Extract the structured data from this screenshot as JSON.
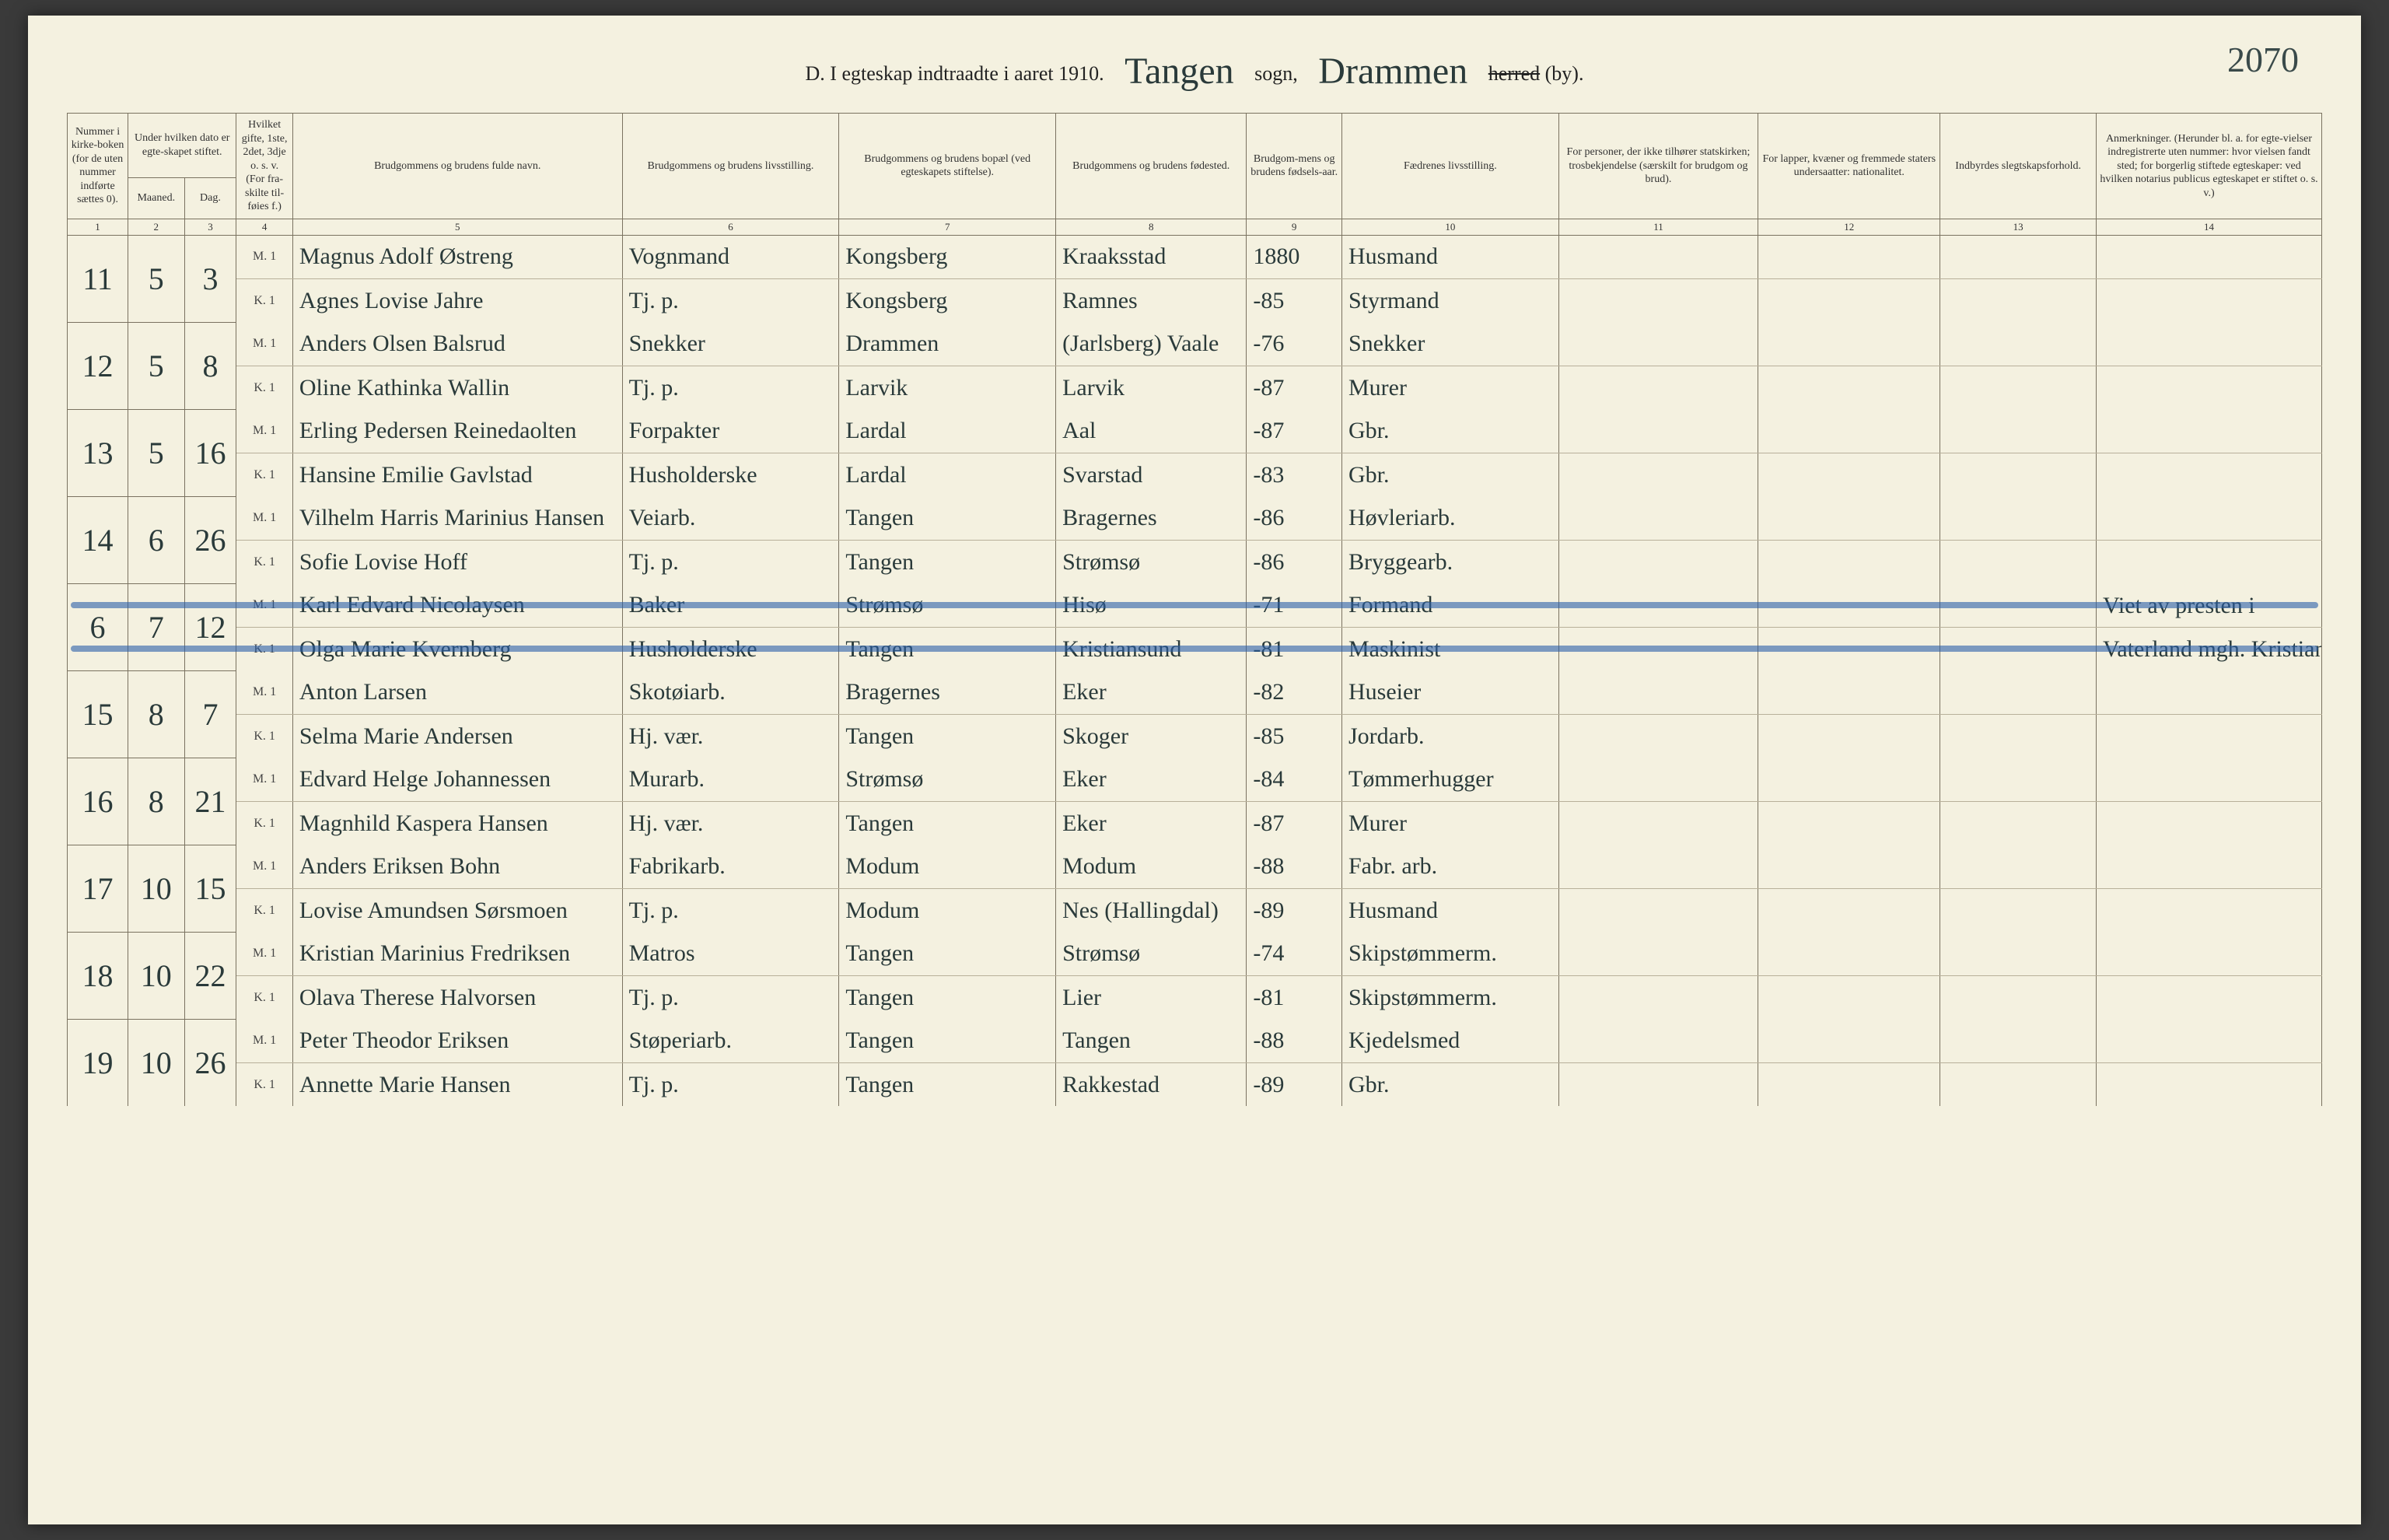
{
  "pageNumber": "2070",
  "header": {
    "prefix": "D.  I egteskap indtraadte i aaret 19",
    "yearSuffix": "10.",
    "parish": "Tangen",
    "sognLabel": "sogn,",
    "district": "Drammen",
    "herred": "herred",
    "by": "(by)."
  },
  "columns": [
    {
      "num": "1",
      "label": "Nummer i kirke-boken (for de uten nummer indførte sættes 0)."
    },
    {
      "num": "2",
      "label": "Maaned."
    },
    {
      "num": "3",
      "label": "Dag."
    },
    {
      "num": "4",
      "label": "Hvilket gifte, 1ste, 2det, 3dje o. s. v. (For fra-skilte til-føies f.)"
    },
    {
      "num": "5",
      "label": "Brudgommens og brudens fulde navn."
    },
    {
      "num": "6",
      "label": "Brudgommens og brudens livsstilling."
    },
    {
      "num": "7",
      "label": "Brudgommens og brudens bopæl (ved egteskapets stiftelse)."
    },
    {
      "num": "8",
      "label": "Brudgommens og brudens fødested."
    },
    {
      "num": "9",
      "label": "Brudgom-mens og brudens fødsels-aar."
    },
    {
      "num": "10",
      "label": "Fædrenes livsstilling."
    },
    {
      "num": "11",
      "label": "For personer, der ikke tilhører statskirken; trosbekjendelse (særskilt for brudgom og brud)."
    },
    {
      "num": "12",
      "label": "For lapper, kvæner og fremmede staters undersaatter: nationalitet."
    },
    {
      "num": "13",
      "label": "Indbyrdes slegtskapsforhold."
    },
    {
      "num": "14",
      "label": "Anmerkninger. (Herunder bl. a. for egte-vielser indregistrerte uten nummer: hvor vielsen fandt sted; for borgerlig stiftede egteskaper: ved hvilken notarius publicus egteskapet er stiftet o. s. v.)"
    }
  ],
  "dateHeaderGroup": "Under hvilken dato er egte-skapet stiftet.",
  "rowLabels": {
    "groom": "M. 1",
    "bride": "K. 1"
  },
  "entries": [
    {
      "no": "11",
      "month": "5",
      "day": "3",
      "struck": false,
      "groom": {
        "name": "Magnus Adolf Østreng",
        "occ": "Vognmand",
        "res": "Kongsberg",
        "birthplace": "Kraaksstad",
        "year": "1880",
        "father": "Husmand",
        "col11": "",
        "col12": "",
        "col13": "",
        "remarks": ""
      },
      "bride": {
        "name": "Agnes Lovise Jahre",
        "occ": "Tj. p.",
        "res": "Kongsberg",
        "birthplace": "Ramnes",
        "year": "-85",
        "father": "Styrmand",
        "col11": "",
        "col12": "",
        "col13": "",
        "remarks": ""
      }
    },
    {
      "no": "12",
      "month": "5",
      "day": "8",
      "struck": false,
      "groom": {
        "name": "Anders Olsen Balsrud",
        "occ": "Snekker",
        "res": "Drammen",
        "birthplace": "(Jarlsberg) Vaale",
        "year": "-76",
        "father": "Snekker",
        "col11": "",
        "col12": "",
        "col13": "",
        "remarks": ""
      },
      "bride": {
        "name": "Oline Kathinka Wallin",
        "occ": "Tj. p.",
        "res": "Larvik",
        "birthplace": "Larvik",
        "year": "-87",
        "father": "Murer",
        "col11": "",
        "col12": "",
        "col13": "",
        "remarks": ""
      }
    },
    {
      "no": "13",
      "month": "5",
      "day": "16",
      "struck": false,
      "groom": {
        "name": "Erling Pedersen Reinedaolten",
        "occ": "Forpakter",
        "res": "Lardal",
        "birthplace": "Aal",
        "year": "-87",
        "father": "Gbr.",
        "col11": "",
        "col12": "",
        "col13": "",
        "remarks": ""
      },
      "bride": {
        "name": "Hansine Emilie Gavlstad",
        "occ": "Husholderske",
        "res": "Lardal",
        "birthplace": "Svarstad",
        "year": "-83",
        "father": "Gbr.",
        "col11": "",
        "col12": "",
        "col13": "",
        "remarks": ""
      }
    },
    {
      "no": "14",
      "month": "6",
      "day": "26",
      "struck": false,
      "groom": {
        "name": "Vilhelm Harris Marinius Hansen",
        "occ": "Veiarb.",
        "res": "Tangen",
        "birthplace": "Bragernes",
        "year": "-86",
        "father": "Høvleriarb.",
        "col11": "",
        "col12": "",
        "col13": "",
        "remarks": ""
      },
      "bride": {
        "name": "Sofie Lovise Hoff",
        "occ": "Tj. p.",
        "res": "Tangen",
        "birthplace": "Strømsø",
        "year": "-86",
        "father": "Bryggearb.",
        "col11": "",
        "col12": "",
        "col13": "",
        "remarks": ""
      }
    },
    {
      "no": "6",
      "month": "7",
      "day": "12",
      "struck": true,
      "groom": {
        "name": "Karl Edvard Nicolaysen",
        "occ": "Baker",
        "res": "Strømsø",
        "birthplace": "Hisø",
        "year": "-71",
        "father": "Formand",
        "col11": "",
        "col12": "",
        "col13": "",
        "remarks": "Viet av presten i"
      },
      "bride": {
        "name": "Olga Marie Kvernberg",
        "occ": "Husholderske",
        "res": "Tangen",
        "birthplace": "Kristiansund",
        "year": "-81",
        "father": "Maskinist",
        "col11": "",
        "col12": "",
        "col13": "",
        "remarks": "Vaterland mgh. Kristiania"
      }
    },
    {
      "no": "15",
      "month": "8",
      "day": "7",
      "struck": false,
      "groom": {
        "name": "Anton Larsen",
        "occ": "Skotøiarb.",
        "res": "Bragernes",
        "birthplace": "Eker",
        "year": "-82",
        "father": "Huseier",
        "col11": "",
        "col12": "",
        "col13": "",
        "remarks": ""
      },
      "bride": {
        "name": "Selma Marie Andersen",
        "occ": "Hj. vær.",
        "res": "Tangen",
        "birthplace": "Skoger",
        "year": "-85",
        "father": "Jordarb.",
        "col11": "",
        "col12": "",
        "col13": "",
        "remarks": ""
      }
    },
    {
      "no": "16",
      "month": "8",
      "day": "21",
      "struck": false,
      "groom": {
        "name": "Edvard Helge Johannessen",
        "occ": "Murarb.",
        "res": "Strømsø",
        "birthplace": "Eker",
        "year": "-84",
        "father": "Tømmerhugger",
        "col11": "",
        "col12": "",
        "col13": "",
        "remarks": ""
      },
      "bride": {
        "name": "Magnhild Kaspera Hansen",
        "occ": "Hj. vær.",
        "res": "Tangen",
        "birthplace": "Eker",
        "year": "-87",
        "father": "Murer",
        "col11": "",
        "col12": "",
        "col13": "",
        "remarks": ""
      }
    },
    {
      "no": "17",
      "month": "10",
      "day": "15",
      "struck": false,
      "groom": {
        "name": "Anders Eriksen Bohn",
        "occ": "Fabrikarb.",
        "res": "Modum",
        "birthplace": "Modum",
        "year": "-88",
        "father": "Fabr. arb.",
        "col11": "",
        "col12": "",
        "col13": "",
        "remarks": ""
      },
      "bride": {
        "name": "Lovise Amundsen Sørsmoen",
        "occ": "Tj. p.",
        "res": "Modum",
        "birthplace": "Nes (Hallingdal)",
        "year": "-89",
        "father": "Husmand",
        "col11": "",
        "col12": "",
        "col13": "",
        "remarks": ""
      }
    },
    {
      "no": "18",
      "month": "10",
      "day": "22",
      "struck": false,
      "groom": {
        "name": "Kristian Marinius Fredriksen",
        "occ": "Matros",
        "res": "Tangen",
        "birthplace": "Strømsø",
        "year": "-74",
        "father": "Skipstømmerm.",
        "col11": "",
        "col12": "",
        "col13": "",
        "remarks": ""
      },
      "bride": {
        "name": "Olava Therese Halvorsen",
        "occ": "Tj. p.",
        "res": "Tangen",
        "birthplace": "Lier",
        "year": "-81",
        "father": "Skipstømmerm.",
        "col11": "",
        "col12": "",
        "col13": "",
        "remarks": ""
      }
    },
    {
      "no": "19",
      "month": "10",
      "day": "26",
      "struck": false,
      "groom": {
        "name": "Peter Theodor Eriksen",
        "occ": "Støperiarb.",
        "res": "Tangen",
        "birthplace": "Tangen",
        "year": "-88",
        "father": "Kjedelsmed",
        "col11": "",
        "col12": "",
        "col13": "",
        "remarks": ""
      },
      "bride": {
        "name": "Annette Marie Hansen",
        "occ": "Tj. p.",
        "res": "Tangen",
        "birthplace": "Rakkestad",
        "year": "-89",
        "father": "Gbr.",
        "col11": "",
        "col12": "",
        "col13": "",
        "remarks": ""
      }
    }
  ],
  "style": {
    "pageBg": "#f4f1e0",
    "borderColor": "#7a7260",
    "handColor": "#2a3a3a",
    "strikeColor": "#2a5fa8"
  }
}
